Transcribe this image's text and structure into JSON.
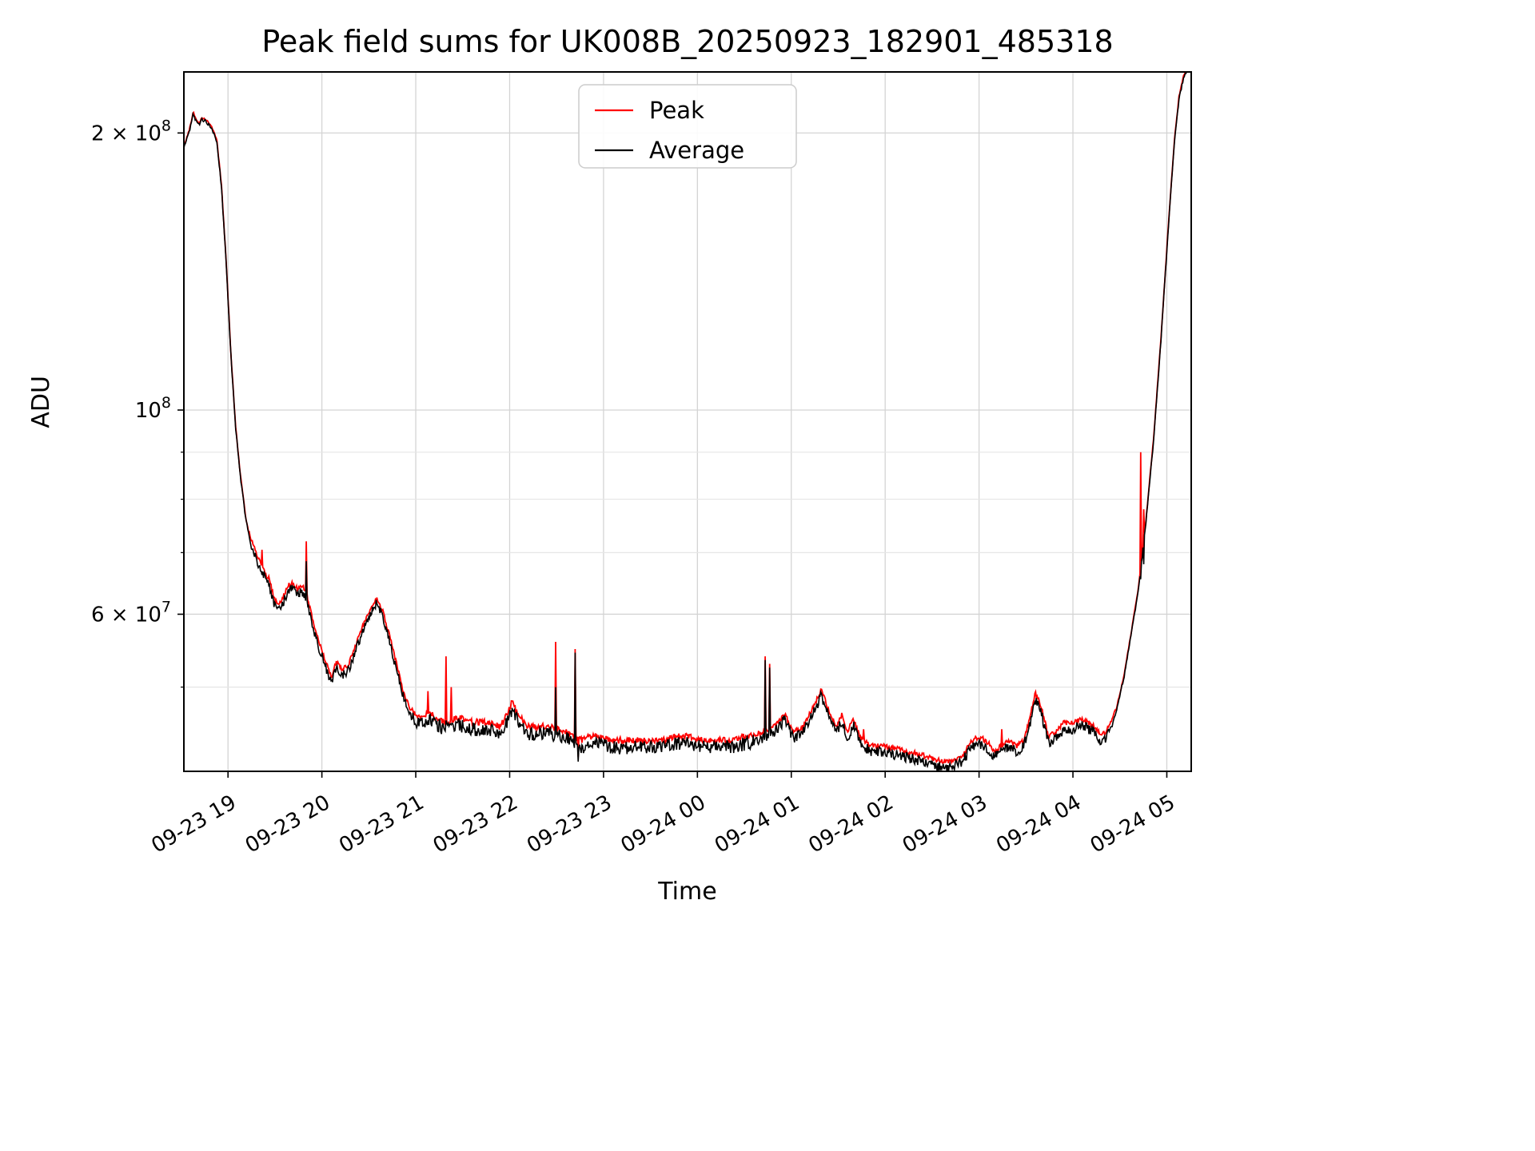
{
  "figure_colors": {
    "background": "#ffffff",
    "grid_major": "#d4d4d4",
    "grid_minor": "#e6e6e6",
    "spine": "#000000"
  },
  "chart_data": {
    "type": "line",
    "title": "Peak field sums for UK008B_20250923_182901_485318",
    "xlabel": "Time",
    "ylabel": "ADU",
    "y_scale": "log",
    "grid": true,
    "legend_position": "upper center",
    "x_unit": "hours after 2025-09-23 18:00",
    "xlim_hours": [
      0.53,
      11.26
    ],
    "ylim": [
      40500000.0,
      233000000.0
    ],
    "x_ticks": [
      {
        "hour": 1,
        "label": "09-23 19"
      },
      {
        "hour": 2,
        "label": "09-23 20"
      },
      {
        "hour": 3,
        "label": "09-23 21"
      },
      {
        "hour": 4,
        "label": "09-23 22"
      },
      {
        "hour": 5,
        "label": "09-23 23"
      },
      {
        "hour": 6,
        "label": "09-24 00"
      },
      {
        "hour": 7,
        "label": "09-24 01"
      },
      {
        "hour": 8,
        "label": "09-24 02"
      },
      {
        "hour": 9,
        "label": "09-24 03"
      },
      {
        "hour": 10,
        "label": "09-24 04"
      },
      {
        "hour": 11,
        "label": "09-24 05"
      }
    ],
    "y_ticks_labeled": [
      {
        "value": 200000000.0,
        "text": "2 × 10",
        "exp": "8"
      },
      {
        "value": 100000000.0,
        "text": "10",
        "exp": "8"
      },
      {
        "value": 60000000.0,
        "text": "6 × 10",
        "exp": "7"
      }
    ],
    "y_ticks_minor": [
      50000000.0,
      70000000.0,
      80000000.0,
      90000000.0
    ],
    "series": [
      {
        "name": "Peak",
        "color": "#ff0000"
      },
      {
        "name": "Average",
        "color": "#000000"
      }
    ],
    "average_control_points": [
      [
        0.53,
        193000000.0
      ],
      [
        0.57,
        198000000.0
      ],
      [
        0.6,
        203000000.0
      ],
      [
        0.63,
        210000000.0
      ],
      [
        0.66,
        206000000.0
      ],
      [
        0.69,
        204000000.0
      ],
      [
        0.72,
        207000000.0
      ],
      [
        0.76,
        206000000.0
      ],
      [
        0.82,
        203000000.0
      ],
      [
        0.88,
        196000000.0
      ],
      [
        0.93,
        175000000.0
      ],
      [
        0.98,
        145000000.0
      ],
      [
        1.03,
        115000000.0
      ],
      [
        1.08,
        96000000.0
      ],
      [
        1.13,
        85000000.0
      ],
      [
        1.19,
        76000000.0
      ],
      [
        1.25,
        71000000.0
      ],
      [
        1.31,
        68500000.0
      ],
      [
        1.38,
        66000000.0
      ],
      [
        1.44,
        64500000.0
      ],
      [
        1.49,
        61500000.0
      ],
      [
        1.53,
        60500000.0
      ],
      [
        1.58,
        61500000.0
      ],
      [
        1.64,
        63500000.0
      ],
      [
        1.69,
        64000000.0
      ],
      [
        1.74,
        63000000.0
      ],
      [
        1.79,
        63500000.0
      ],
      [
        1.84,
        62000000.0
      ],
      [
        1.9,
        58500000.0
      ],
      [
        1.97,
        55000000.0
      ],
      [
        2.04,
        52500000.0
      ],
      [
        2.1,
        50500000.0
      ],
      [
        2.15,
        52500000.0
      ],
      [
        2.21,
        51500000.0
      ],
      [
        2.28,
        52000000.0
      ],
      [
        2.35,
        54500000.0
      ],
      [
        2.44,
        57500000.0
      ],
      [
        2.52,
        60000000.0
      ],
      [
        2.58,
        61500000.0
      ],
      [
        2.64,
        60000000.0
      ],
      [
        2.71,
        56500000.0
      ],
      [
        2.79,
        52500000.0
      ],
      [
        2.86,
        49000000.0
      ],
      [
        2.94,
        46500000.0
      ],
      [
        3.05,
        45500000.0
      ],
      [
        3.15,
        46000000.0
      ],
      [
        3.3,
        45000000.0
      ],
      [
        3.45,
        45500000.0
      ],
      [
        3.6,
        45000000.0
      ],
      [
        3.75,
        45000000.0
      ],
      [
        3.9,
        44500000.0
      ],
      [
        3.98,
        46000000.0
      ],
      [
        4.03,
        47500000.0
      ],
      [
        4.08,
        46000000.0
      ],
      [
        4.2,
        44500000.0
      ],
      [
        4.4,
        44500000.0
      ],
      [
        4.6,
        44000000.0
      ],
      [
        4.75,
        43000000.0
      ],
      [
        4.9,
        43500000.0
      ],
      [
        5.1,
        43000000.0
      ],
      [
        5.35,
        43000000.0
      ],
      [
        5.6,
        43000000.0
      ],
      [
        5.85,
        43500000.0
      ],
      [
        6.1,
        43000000.0
      ],
      [
        6.35,
        43000000.0
      ],
      [
        6.55,
        43500000.0
      ],
      [
        6.68,
        44000000.0
      ],
      [
        6.8,
        44500000.0
      ],
      [
        6.93,
        46000000.0
      ],
      [
        7.02,
        44000000.0
      ],
      [
        7.12,
        44500000.0
      ],
      [
        7.22,
        46500000.0
      ],
      [
        7.32,
        49000000.0
      ],
      [
        7.4,
        46500000.0
      ],
      [
        7.48,
        44500000.0
      ],
      [
        7.54,
        46000000.0
      ],
      [
        7.6,
        44000000.0
      ],
      [
        7.66,
        45500000.0
      ],
      [
        7.73,
        43500000.0
      ],
      [
        7.85,
        42500000.0
      ],
      [
        8.0,
        42500000.0
      ],
      [
        8.2,
        42000000.0
      ],
      [
        8.4,
        41500000.0
      ],
      [
        8.55,
        41000000.0
      ],
      [
        8.7,
        40800000.0
      ],
      [
        8.82,
        41500000.0
      ],
      [
        8.92,
        43000000.0
      ],
      [
        9.0,
        43500000.0
      ],
      [
        9.08,
        43000000.0
      ],
      [
        9.16,
        42000000.0
      ],
      [
        9.24,
        42500000.0
      ],
      [
        9.32,
        43000000.0
      ],
      [
        9.4,
        42500000.0
      ],
      [
        9.47,
        43000000.0
      ],
      [
        9.53,
        45000000.0
      ],
      [
        9.6,
        48500000.0
      ],
      [
        9.66,
        47000000.0
      ],
      [
        9.74,
        43500000.0
      ],
      [
        9.82,
        44000000.0
      ],
      [
        9.9,
        45000000.0
      ],
      [
        10.0,
        45000000.0
      ],
      [
        10.08,
        45500000.0
      ],
      [
        10.17,
        45000000.0
      ],
      [
        10.24,
        44500000.0
      ],
      [
        10.3,
        43500000.0
      ],
      [
        10.38,
        44500000.0
      ],
      [
        10.46,
        47000000.0
      ],
      [
        10.54,
        51000000.0
      ],
      [
        10.62,
        57000000.0
      ],
      [
        10.7,
        64000000.0
      ],
      [
        10.78,
        76000000.0
      ],
      [
        10.86,
        93000000.0
      ],
      [
        10.94,
        120000000.0
      ],
      [
        11.02,
        160000000.0
      ],
      [
        11.08,
        195000000.0
      ],
      [
        11.13,
        218000000.0
      ],
      [
        11.18,
        230000000.0
      ],
      [
        11.22,
        234000000.0
      ],
      [
        11.26,
        235000000.0
      ]
    ],
    "spikes": [
      {
        "t": 1.36,
        "peak": 70500000.0,
        "avg": 66200000.0
      },
      {
        "t": 1.83,
        "peak": 72000000.0,
        "avg": 68500000.0
      },
      {
        "t": 3.13,
        "peak": 49500000.0,
        "avg": 46000000.0
      },
      {
        "t": 3.32,
        "peak": 54000000.0,
        "avg": 46000000.0
      },
      {
        "t": 3.38,
        "peak": 50000000.0,
        "avg": 45500000.0
      },
      {
        "t": 4.49,
        "peak": 56000000.0,
        "avg": 50000000.0
      },
      {
        "t": 4.7,
        "peak": 55000000.0,
        "avg": 54500000.0
      },
      {
        "t": 4.73,
        "peak": 42000000.0,
        "avg": 41500000.0
      },
      {
        "t": 6.72,
        "peak": 54000000.0,
        "avg": 53500000.0
      },
      {
        "t": 6.77,
        "peak": 53000000.0,
        "avg": 52500000.0
      },
      {
        "t": 7.77,
        "peak": 45000000.0,
        "avg": 43000000.0
      },
      {
        "t": 9.24,
        "peak": 45000000.0,
        "avg": 42700000.0
      },
      {
        "t": 10.72,
        "peak": 90000000.0,
        "avg": 65500000.0
      },
      {
        "t": 10.75,
        "peak": 78000000.0,
        "avg": 68000000.0
      }
    ],
    "noise_bands": [
      [
        0.53,
        1.25,
        0.004
      ],
      [
        1.25,
        2.9,
        0.012
      ],
      [
        2.9,
        6.6,
        0.017
      ],
      [
        6.6,
        10.42,
        0.013
      ],
      [
        10.42,
        11.27,
        0.004
      ]
    ],
    "peak_gap_bands": [
      [
        0.53,
        1.22,
        0.002
      ],
      [
        1.22,
        10.45,
        0.009
      ],
      [
        10.45,
        11.27,
        0.003
      ]
    ]
  }
}
